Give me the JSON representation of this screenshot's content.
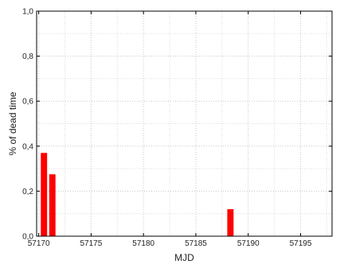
{
  "chart_data": {
    "type": "bar",
    "title": "",
    "xlabel": "MJD",
    "ylabel": "% of dead time",
    "xlim": [
      56169.8,
      57198.0
    ],
    "ylim": [
      0.0,
      1.0
    ],
    "x_ticks": [
      57170,
      57175,
      57180,
      57185,
      57190,
      57195
    ],
    "x_tick_labels": [
      "57170",
      "57175",
      "57180",
      "57185",
      "57190",
      "57195"
    ],
    "y_ticks": [
      0.0,
      0.2,
      0.4,
      0.6,
      0.8,
      1.0
    ],
    "y_tick_labels": [
      "0,0",
      "0,2",
      "0,4",
      "0,6",
      "0,8",
      "1,0"
    ],
    "grid": "dotted",
    "bar_color": "#ff0000",
    "bar_width": 0.6,
    "bars": [
      {
        "x": 57170.5,
        "value": 0.37
      },
      {
        "x": 57171.3,
        "value": 0.275
      },
      {
        "x": 57188.3,
        "value": 0.12
      }
    ]
  }
}
